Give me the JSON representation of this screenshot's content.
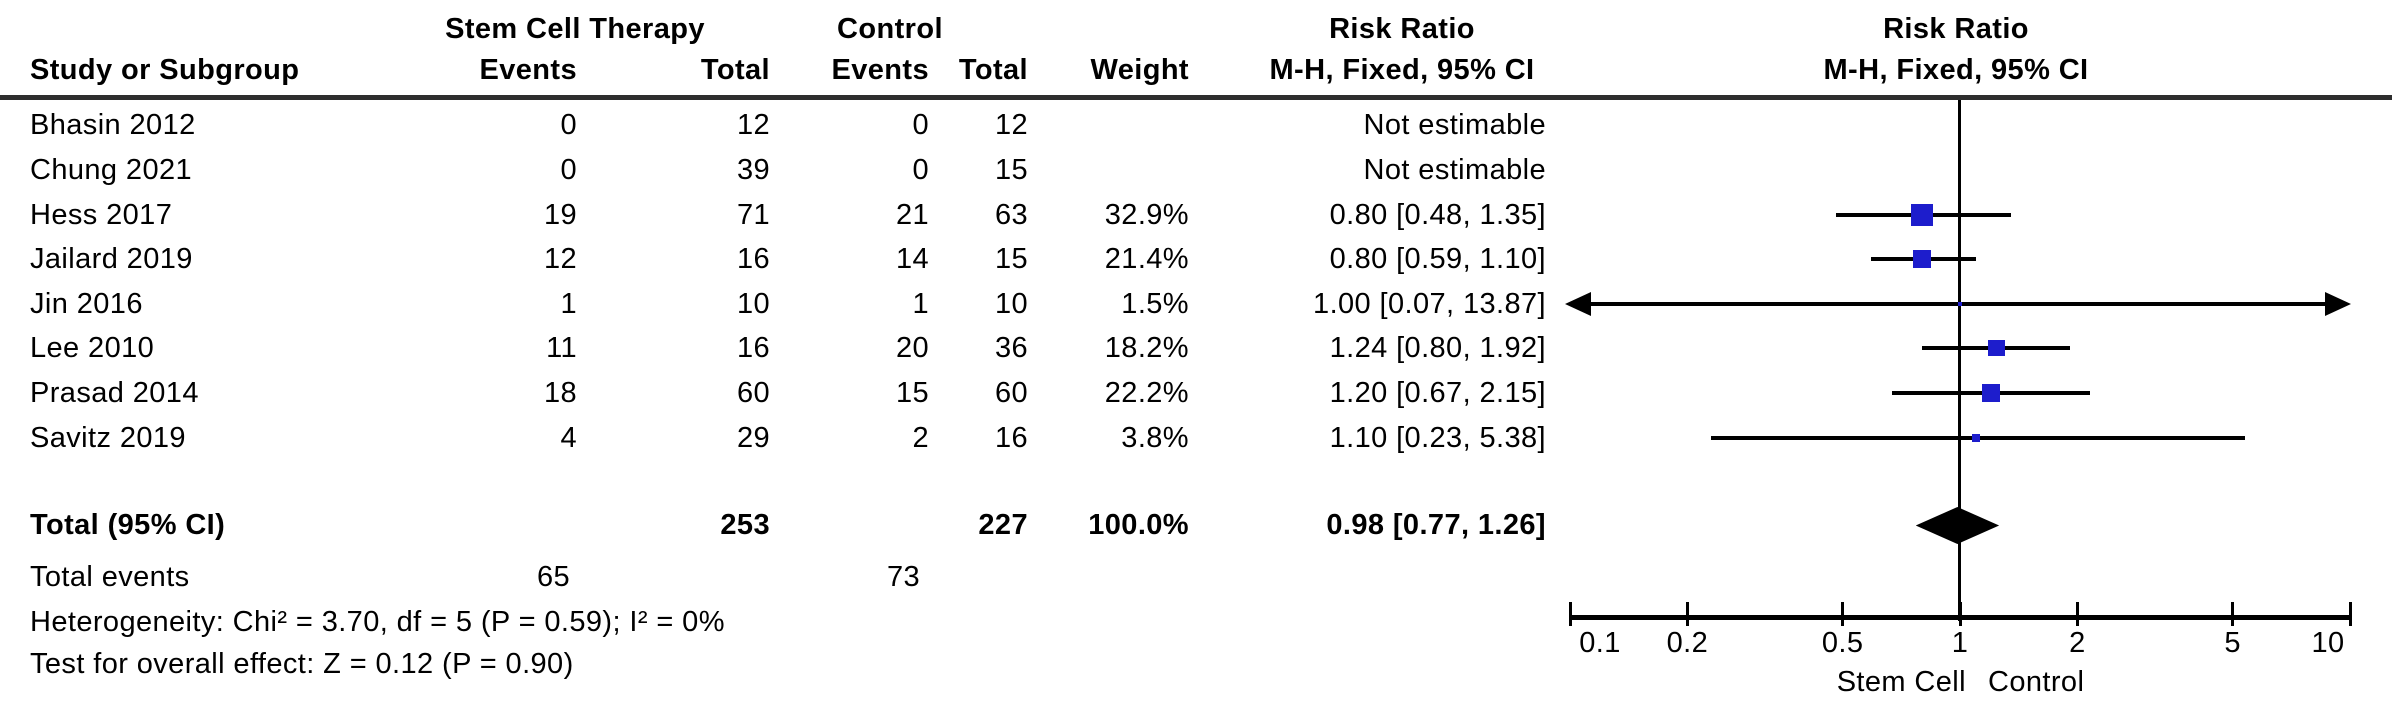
{
  "figure": {
    "header": {
      "study_col": "Study or Subgroup",
      "group1": "Stem Cell Therapy",
      "group2": "Control",
      "events": "Events",
      "total": "Total",
      "weight": "Weight",
      "risk_ratio": "Risk Ratio",
      "method": "M-H, Fixed, 95% CI"
    },
    "studies": [
      {
        "name": "Bhasin 2012",
        "events1": "0",
        "total1": "12",
        "events2": "0",
        "total2": "12",
        "weight": "",
        "rr_text": "Not estimable"
      },
      {
        "name": "Chung 2021",
        "events1": "0",
        "total1": "39",
        "events2": "0",
        "total2": "15",
        "weight": "",
        "rr_text": "Not estimable"
      },
      {
        "name": "Hess 2017",
        "events1": "19",
        "total1": "71",
        "events2": "21",
        "total2": "63",
        "weight": "32.9%",
        "rr_text": "0.80 [0.48, 1.35]"
      },
      {
        "name": "Jailard 2019",
        "events1": "12",
        "total1": "16",
        "events2": "14",
        "total2": "15",
        "weight": "21.4%",
        "rr_text": "0.80 [0.59, 1.10]"
      },
      {
        "name": "Jin 2016",
        "events1": "1",
        "total1": "10",
        "events2": "1",
        "total2": "10",
        "weight": "1.5%",
        "rr_text": "1.00 [0.07, 13.87]"
      },
      {
        "name": "Lee 2010",
        "events1": "11",
        "total1": "16",
        "events2": "20",
        "total2": "36",
        "weight": "18.2%",
        "rr_text": "1.24 [0.80, 1.92]"
      },
      {
        "name": "Prasad 2014",
        "events1": "18",
        "total1": "60",
        "events2": "15",
        "total2": "60",
        "weight": "22.2%",
        "rr_text": "1.20 [0.67, 2.15]"
      },
      {
        "name": "Savitz 2019",
        "events1": "4",
        "total1": "29",
        "events2": "2",
        "total2": "16",
        "weight": "3.8%",
        "rr_text": "1.10 [0.23, 5.38]"
      }
    ],
    "totals": {
      "label": "Total (95% CI)",
      "total1": "253",
      "total2": "227",
      "weight": "100.0%",
      "rr_text": "0.98 [0.77, 1.26]"
    },
    "total_events": {
      "label": "Total events",
      "events1": "65",
      "events2": "73"
    },
    "heterogeneity": "Heterogeneity: Chi² = 3.70, df = 5 (P = 0.59); I² = 0%",
    "overall_effect": "Test for overall effect: Z = 0.12 (P = 0.90)"
  },
  "axis": {
    "tick_labels": [
      "0.1",
      "0.2",
      "0.5",
      "1",
      "2",
      "5",
      "10"
    ],
    "label_left": "Stem Cell",
    "label_right": "Control"
  },
  "colors": {
    "square_blue": "#1d1dcc",
    "line_black": "#000000",
    "rule_gray": "#2e2e2e"
  },
  "chart_data": {
    "type": "scatter",
    "subtype": "forest-plot",
    "title": "Risk Ratio",
    "method_label": "M-H, Fixed, 95% CI",
    "x_scale": "log10",
    "xlim": [
      0.1,
      10
    ],
    "x_ticks": [
      0.1,
      0.2,
      0.5,
      1,
      2,
      5,
      10
    ],
    "x_axis_left_label": "Stem Cell",
    "x_axis_right_label": "Control",
    "reference_line": 1,
    "studies": [
      {
        "study": "Bhasin 2012",
        "events_tx": 0,
        "total_tx": 12,
        "events_ctrl": 0,
        "total_ctrl": 12,
        "weight_pct": null,
        "rr": null,
        "ci_low": null,
        "ci_high": null,
        "note": "Not estimable"
      },
      {
        "study": "Chung 2021",
        "events_tx": 0,
        "total_tx": 39,
        "events_ctrl": 0,
        "total_ctrl": 15,
        "weight_pct": null,
        "rr": null,
        "ci_low": null,
        "ci_high": null,
        "note": "Not estimable"
      },
      {
        "study": "Hess 2017",
        "events_tx": 19,
        "total_tx": 71,
        "events_ctrl": 21,
        "total_ctrl": 63,
        "weight_pct": 32.9,
        "rr": 0.8,
        "ci_low": 0.48,
        "ci_high": 1.35
      },
      {
        "study": "Jailard 2019",
        "events_tx": 12,
        "total_tx": 16,
        "events_ctrl": 14,
        "total_ctrl": 15,
        "weight_pct": 21.4,
        "rr": 0.8,
        "ci_low": 0.59,
        "ci_high": 1.1
      },
      {
        "study": "Jin 2016",
        "events_tx": 1,
        "total_tx": 10,
        "events_ctrl": 1,
        "total_ctrl": 10,
        "weight_pct": 1.5,
        "rr": 1.0,
        "ci_low": 0.07,
        "ci_high": 13.87
      },
      {
        "study": "Lee 2010",
        "events_tx": 11,
        "total_tx": 16,
        "events_ctrl": 20,
        "total_ctrl": 36,
        "weight_pct": 18.2,
        "rr": 1.24,
        "ci_low": 0.8,
        "ci_high": 1.92
      },
      {
        "study": "Prasad 2014",
        "events_tx": 18,
        "total_tx": 60,
        "events_ctrl": 15,
        "total_ctrl": 60,
        "weight_pct": 22.2,
        "rr": 1.2,
        "ci_low": 0.67,
        "ci_high": 2.15
      },
      {
        "study": "Savitz 2019",
        "events_tx": 4,
        "total_tx": 29,
        "events_ctrl": 2,
        "total_ctrl": 16,
        "weight_pct": 3.8,
        "rr": 1.1,
        "ci_low": 0.23,
        "ci_high": 5.38
      }
    ],
    "total": {
      "label": "Total (95% CI)",
      "total_tx": 253,
      "total_ctrl": 227,
      "weight_pct": 100.0,
      "rr": 0.98,
      "ci_low": 0.77,
      "ci_high": 1.26,
      "total_events_tx": 65,
      "total_events_ctrl": 73
    },
    "heterogeneity": {
      "chi2": 3.7,
      "df": 5,
      "p": 0.59,
      "i2_pct": 0
    },
    "overall_effect": {
      "z": 0.12,
      "p": 0.9
    }
  }
}
